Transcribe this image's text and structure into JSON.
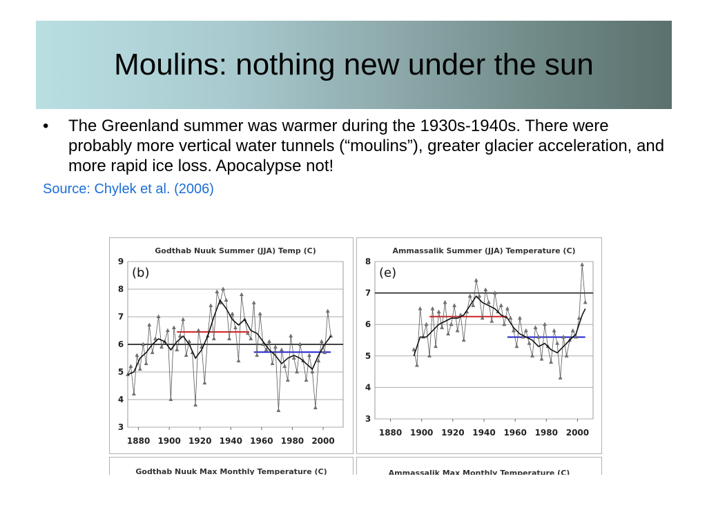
{
  "slide": {
    "title": "Moulins: nothing new under the sun",
    "bullet": "The Greenland summer was warmer during the 1930s-1940s. There were probably more vertical water tunnels (“moulins”), greater glacier acceleration, and more rapid ice loss. Apocalypse not!",
    "bullet_symbol": "•",
    "source": "Source: Chylek et al. (2006)",
    "source_color": "#1a6ed8"
  },
  "bottom_titles": [
    "Godthab Nuuk Max Monthly Temperature (C)",
    "Ammassalik Max Monthly Temperature (C)"
  ],
  "chart_data": [
    {
      "type": "line",
      "title": "Godthab Nuuk Summer (JJA) Temp (C)",
      "panel_label": "(b)",
      "xlabel": "",
      "ylabel": "",
      "xlim": [
        1873,
        2013
      ],
      "ylim": [
        3,
        9
      ],
      "xticks": [
        1880,
        1900,
        1920,
        1940,
        1960,
        1980,
        2000
      ],
      "yticks": [
        3,
        4,
        5,
        6,
        7,
        8,
        9
      ],
      "grid": true,
      "reference_lines": [
        {
          "y": 6.0,
          "x_range": [
            1873,
            2013
          ],
          "color": "#000000"
        },
        {
          "y": 6.45,
          "x_range": [
            1905,
            1952
          ],
          "color": "#d62020"
        },
        {
          "y": 5.72,
          "x_range": [
            1955,
            2005
          ],
          "color": "#2020d0"
        }
      ],
      "series": [
        {
          "color": "#555555",
          "x": [
            1873,
            1875,
            1877,
            1879,
            1881,
            1883,
            1885,
            1887,
            1889,
            1891,
            1893,
            1895,
            1897,
            1899,
            1901,
            1903,
            1905,
            1907,
            1909,
            1911,
            1913,
            1915,
            1917,
            1919,
            1921,
            1923,
            1925,
            1927,
            1929,
            1931,
            1933,
            1935,
            1937,
            1939,
            1941,
            1943,
            1945,
            1947,
            1949,
            1951,
            1953,
            1955,
            1957,
            1959,
            1961,
            1963,
            1965,
            1967,
            1969,
            1971,
            1973,
            1975,
            1977,
            1979,
            1981,
            1983,
            1985,
            1987,
            1989,
            1991,
            1993,
            1995,
            1997,
            1999,
            2001,
            2003,
            2005
          ],
          "y": [
            4.9,
            5.2,
            4.2,
            5.6,
            5.1,
            6.0,
            5.3,
            6.7,
            5.7,
            6.2,
            7.0,
            5.9,
            6.1,
            6.5,
            4.0,
            6.6,
            5.8,
            6.3,
            6.9,
            5.6,
            6.1,
            5.7,
            3.8,
            6.5,
            5.9,
            4.6,
            6.3,
            7.4,
            6.2,
            7.9,
            7.5,
            8.0,
            7.6,
            6.2,
            7.1,
            6.6,
            5.4,
            7.8,
            6.9,
            6.4,
            6.2,
            7.5,
            5.6,
            7.1,
            6.0,
            5.8,
            6.1,
            5.3,
            5.9,
            3.6,
            5.8,
            5.2,
            4.7,
            6.3,
            5.5,
            5.0,
            6.0,
            5.4,
            4.7,
            5.6,
            5.0,
            3.7,
            5.4,
            6.1,
            5.7,
            7.2,
            6.3
          ]
        },
        {
          "color": "#111111",
          "x": [
            1873,
            1877,
            1881,
            1885,
            1889,
            1893,
            1897,
            1901,
            1905,
            1909,
            1913,
            1917,
            1921,
            1925,
            1929,
            1933,
            1937,
            1941,
            1945,
            1949,
            1953,
            1957,
            1961,
            1965,
            1969,
            1973,
            1977,
            1981,
            1985,
            1989,
            1993,
            1997,
            2001,
            2005
          ],
          "y": [
            4.9,
            5.0,
            5.5,
            5.7,
            6.0,
            6.2,
            6.1,
            5.8,
            6.1,
            6.3,
            6.0,
            5.5,
            5.8,
            6.3,
            7.0,
            7.6,
            7.3,
            6.9,
            6.7,
            6.9,
            6.5,
            6.4,
            6.1,
            5.8,
            5.6,
            5.3,
            5.5,
            5.6,
            5.5,
            5.3,
            5.1,
            5.6,
            6.0,
            6.3
          ]
        }
      ]
    },
    {
      "type": "line",
      "title": "Ammassalik Summer (JJA) Temperature (C)",
      "panel_label": "(e)",
      "xlabel": "",
      "ylabel": "",
      "xlim": [
        1870,
        2010
      ],
      "ylim": [
        3,
        8
      ],
      "xticks": [
        1880,
        1900,
        1920,
        1940,
        1960,
        1980,
        2000
      ],
      "yticks": [
        3,
        4,
        5,
        6,
        7,
        8
      ],
      "grid": true,
      "reference_lines": [
        {
          "y": 7.0,
          "x_range": [
            1870,
            2010
          ],
          "color": "#000000"
        },
        {
          "y": 6.25,
          "x_range": [
            1905,
            1955
          ],
          "color": "#d62020"
        },
        {
          "y": 5.6,
          "x_range": [
            1955,
            2005
          ],
          "color": "#2020d0"
        }
      ],
      "series": [
        {
          "color": "#555555",
          "x": [
            1895,
            1897,
            1899,
            1901,
            1903,
            1905,
            1907,
            1909,
            1911,
            1913,
            1915,
            1917,
            1919,
            1921,
            1923,
            1925,
            1927,
            1929,
            1931,
            1933,
            1935,
            1937,
            1939,
            1941,
            1943,
            1945,
            1947,
            1949,
            1951,
            1953,
            1955,
            1957,
            1959,
            1961,
            1963,
            1965,
            1967,
            1969,
            1971,
            1973,
            1975,
            1977,
            1979,
            1981,
            1983,
            1985,
            1987,
            1989,
            1991,
            1993,
            1995,
            1997,
            1999,
            2001,
            2003,
            2005
          ],
          "y": [
            5.2,
            4.7,
            6.5,
            5.6,
            6.0,
            5.0,
            6.5,
            5.3,
            6.4,
            5.9,
            6.7,
            5.7,
            6.0,
            6.6,
            5.8,
            6.3,
            5.5,
            6.4,
            6.9,
            6.6,
            7.4,
            6.9,
            6.2,
            7.1,
            6.7,
            6.1,
            7.0,
            6.4,
            6.6,
            6.0,
            6.5,
            6.2,
            5.8,
            5.3,
            6.2,
            5.6,
            5.8,
            5.4,
            5.0,
            5.9,
            5.6,
            4.9,
            6.0,
            5.3,
            4.8,
            5.8,
            5.4,
            4.3,
            5.6,
            5.0,
            5.5,
            5.8,
            5.6,
            6.2,
            7.9,
            6.7
          ]
        },
        {
          "color": "#111111",
          "x": [
            1895,
            1899,
            1903,
            1907,
            1911,
            1915,
            1919,
            1923,
            1927,
            1931,
            1935,
            1939,
            1943,
            1947,
            1951,
            1955,
            1959,
            1963,
            1967,
            1971,
            1975,
            1979,
            1983,
            1987,
            1991,
            1995,
            1999,
            2003,
            2005
          ],
          "y": [
            5.0,
            5.6,
            5.6,
            5.8,
            6.0,
            6.1,
            6.2,
            6.2,
            6.3,
            6.6,
            6.9,
            6.7,
            6.6,
            6.5,
            6.3,
            6.2,
            5.9,
            5.7,
            5.6,
            5.5,
            5.3,
            5.4,
            5.2,
            5.1,
            5.3,
            5.5,
            5.7,
            6.3,
            6.5
          ]
        }
      ]
    }
  ]
}
